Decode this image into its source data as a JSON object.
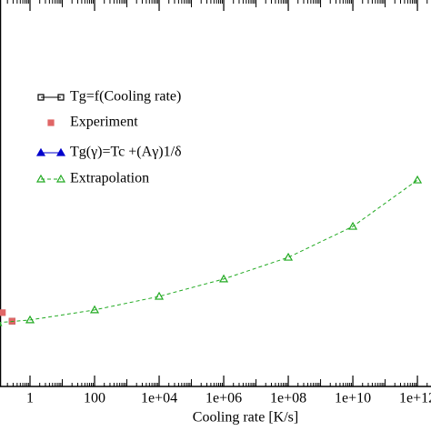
{
  "chart_data": {
    "type": "line",
    "log_x": true,
    "x_label": "Cooling rate [K/s]",
    "xlim": [
      0.1,
      3000000000000
    ],
    "ylim": [
      0,
      100
    ],
    "xticks": [
      1,
      100,
      {
        "value": 10000,
        "label": "1e+04"
      },
      {
        "value": 1000000,
        "label": "1e+06"
      },
      {
        "value": 100000000,
        "label": "1e+08"
      },
      {
        "value": 10000000000,
        "label": "1e+10"
      },
      {
        "value": 1000000000000,
        "label": "1e+12"
      }
    ],
    "legend": "upper left",
    "series": [
      {
        "name": "Tg=f(Cooling rate)",
        "color": "#000000",
        "marker": "open-square",
        "line": "solid",
        "x": [
          0.28
        ],
        "values": [
          16.9
        ]
      },
      {
        "name": "Experiment",
        "color": "#e06666",
        "marker": "square",
        "line": "none",
        "x": [
          0.14,
          0.28
        ],
        "values": [
          19.1,
          16.9
        ]
      },
      {
        "name": "Tg(γ)=Tc +(Aγ)1/δ",
        "color": "#0000cc",
        "marker": "triangle",
        "line": "solid",
        "x": [],
        "values": []
      },
      {
        "name": "Extrapolation",
        "color": "#22aa22",
        "marker": "open-triangle",
        "line": "dashed",
        "x": [
          0.1,
          1,
          100,
          10000,
          1000000,
          100000000,
          10000000000,
          1000000000000
        ],
        "values": [
          16.5,
          17.2,
          19.8,
          23.3,
          27.8,
          33.4,
          41.4,
          53.4
        ]
      }
    ]
  }
}
